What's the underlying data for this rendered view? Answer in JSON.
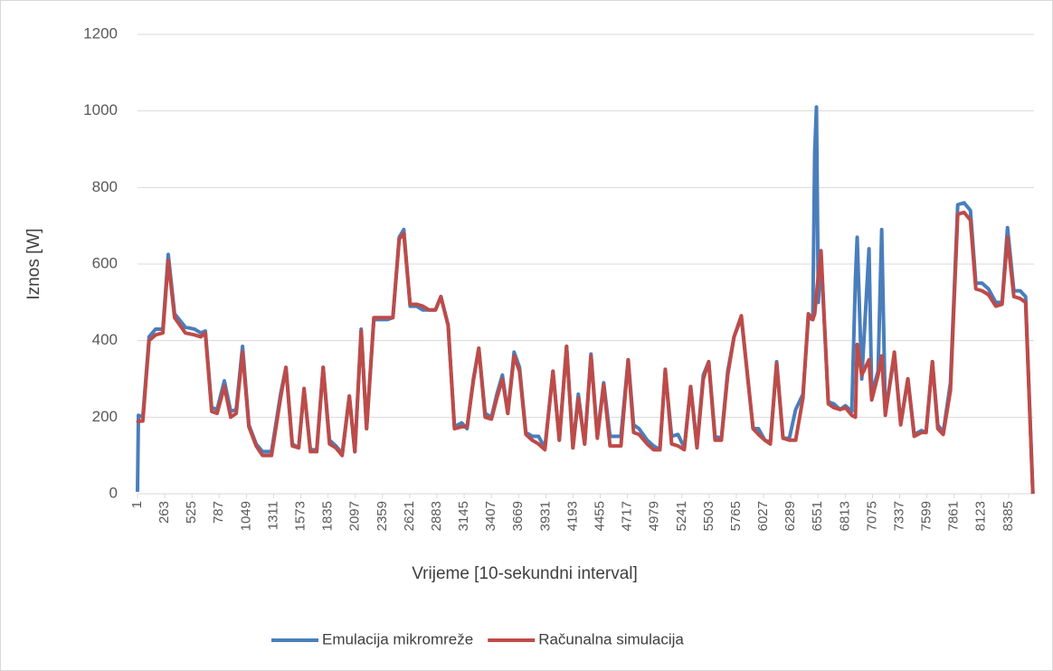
{
  "chart_data": {
    "type": "line",
    "xlabel": "Vrijeme [10-sekundni interval]",
    "ylabel": "Iznos [W]",
    "x": [
      1,
      10,
      52,
      113,
      175,
      245,
      297,
      358,
      462,
      549,
      610,
      654,
      715,
      767,
      837,
      898,
      951,
      1012,
      1073,
      1143,
      1204,
      1291,
      1378,
      1430,
      1491,
      1552,
      1604,
      1665,
      1726,
      1788,
      1849,
      1910,
      1971,
      2040,
      2093,
      2154,
      2206,
      2276,
      2337,
      2407,
      2459,
      2520,
      2564,
      2625,
      2686,
      2747,
      2808,
      2869,
      2921,
      2991,
      3052,
      3121,
      3173,
      3234,
      3286,
      3347,
      3408,
      3460,
      3513,
      3565,
      3626,
      3678,
      3739,
      3800,
      3861,
      3922,
      4000,
      4061,
      4131,
      4192,
      4244,
      4305,
      4366,
      4427,
      4488,
      4549,
      4654,
      4724,
      4776,
      4828,
      4907,
      4968,
      5029,
      5081,
      5142,
      5203,
      5264,
      5325,
      5386,
      5447,
      5499,
      5560,
      5621,
      5682,
      5743,
      5813,
      5926,
      5978,
      6039,
      6092,
      6153,
      6214,
      6275,
      6336,
      6406,
      6458,
      6501,
      6519,
      6536,
      6554,
      6580,
      6650,
      6702,
      6763,
      6815,
      6876,
      6911,
      6928,
      6972,
      7042,
      7068,
      7129,
      7164,
      7199,
      7286,
      7347,
      7416,
      7477,
      7547,
      7591,
      7652,
      7704,
      7756,
      7826,
      7896,
      7957,
      8018,
      8070,
      8131,
      8192,
      8262,
      8323,
      8375,
      8436,
      8497,
      8549,
      8619
    ],
    "series": [
      {
        "name": "Emulacija mikromreže",
        "color": "#4a7ebb",
        "values": [
          5,
          205,
          200,
          410,
          430,
          430,
          625,
          470,
          435,
          430,
          420,
          425,
          225,
          220,
          295,
          215,
          220,
          385,
          180,
          130,
          110,
          110,
          260,
          330,
          130,
          120,
          270,
          115,
          115,
          330,
          140,
          125,
          105,
          255,
          110,
          430,
          170,
          455,
          455,
          455,
          460,
          670,
          690,
          490,
          490,
          480,
          480,
          480,
          515,
          440,
          175,
          185,
          170,
          300,
          380,
          210,
          200,
          260,
          310,
          210,
          370,
          330,
          160,
          150,
          150,
          120,
          320,
          140,
          385,
          120,
          260,
          130,
          365,
          150,
          290,
          150,
          150,
          350,
          180,
          170,
          140,
          125,
          115,
          320,
          150,
          155,
          120,
          280,
          125,
          310,
          345,
          150,
          145,
          320,
          410,
          460,
          170,
          170,
          140,
          135,
          345,
          145,
          145,
          220,
          260,
          460,
          455,
          890,
          1010,
          500,
          620,
          240,
          235,
          220,
          230,
          215,
          560,
          670,
          300,
          640,
          260,
          320,
          690,
          210,
          360,
          185,
          300,
          155,
          165,
          160,
          345,
          180,
          160,
          290,
          755,
          760,
          740,
          550,
          550,
          535,
          500,
          500,
          695,
          530,
          530,
          515,
          0
        ]
      },
      {
        "name": "Računalna simulacija",
        "color": "#be4b48",
        "values": [
          185,
          190,
          190,
          400,
          415,
          420,
          610,
          460,
          420,
          415,
          410,
          420,
          215,
          210,
          280,
          200,
          210,
          370,
          175,
          125,
          100,
          100,
          250,
          330,
          125,
          120,
          275,
          110,
          110,
          330,
          130,
          120,
          100,
          255,
          110,
          425,
          170,
          460,
          460,
          460,
          460,
          665,
          680,
          495,
          495,
          490,
          480,
          480,
          515,
          440,
          170,
          175,
          175,
          295,
          380,
          200,
          195,
          250,
          300,
          210,
          360,
          320,
          155,
          140,
          130,
          115,
          320,
          140,
          385,
          120,
          250,
          130,
          360,
          145,
          285,
          125,
          125,
          350,
          160,
          155,
          130,
          115,
          115,
          325,
          130,
          125,
          115,
          280,
          120,
          300,
          345,
          140,
          140,
          310,
          410,
          465,
          170,
          155,
          140,
          130,
          340,
          145,
          140,
          140,
          250,
          470,
          455,
          470,
          520,
          570,
          635,
          235,
          225,
          220,
          225,
          205,
          200,
          390,
          310,
          350,
          245,
          310,
          360,
          205,
          370,
          180,
          300,
          150,
          160,
          160,
          345,
          170,
          155,
          270,
          730,
          735,
          715,
          535,
          530,
          520,
          490,
          495,
          670,
          515,
          510,
          500,
          0
        ]
      }
    ],
    "xlim": [
      1,
      8630
    ],
    "xticks": [
      1,
      263,
      525,
      787,
      1049,
      1311,
      1573,
      1835,
      2097,
      2359,
      2621,
      2883,
      3145,
      3407,
      3669,
      3931,
      4193,
      4455,
      4717,
      4979,
      5241,
      5503,
      5765,
      6027,
      6289,
      6551,
      6813,
      7075,
      7337,
      7599,
      7861,
      8123,
      8385
    ],
    "ylim": [
      0,
      1200
    ],
    "yticks": [
      0,
      200,
      400,
      600,
      800,
      1000,
      1200
    ],
    "grid": true,
    "legend": "bottom"
  }
}
